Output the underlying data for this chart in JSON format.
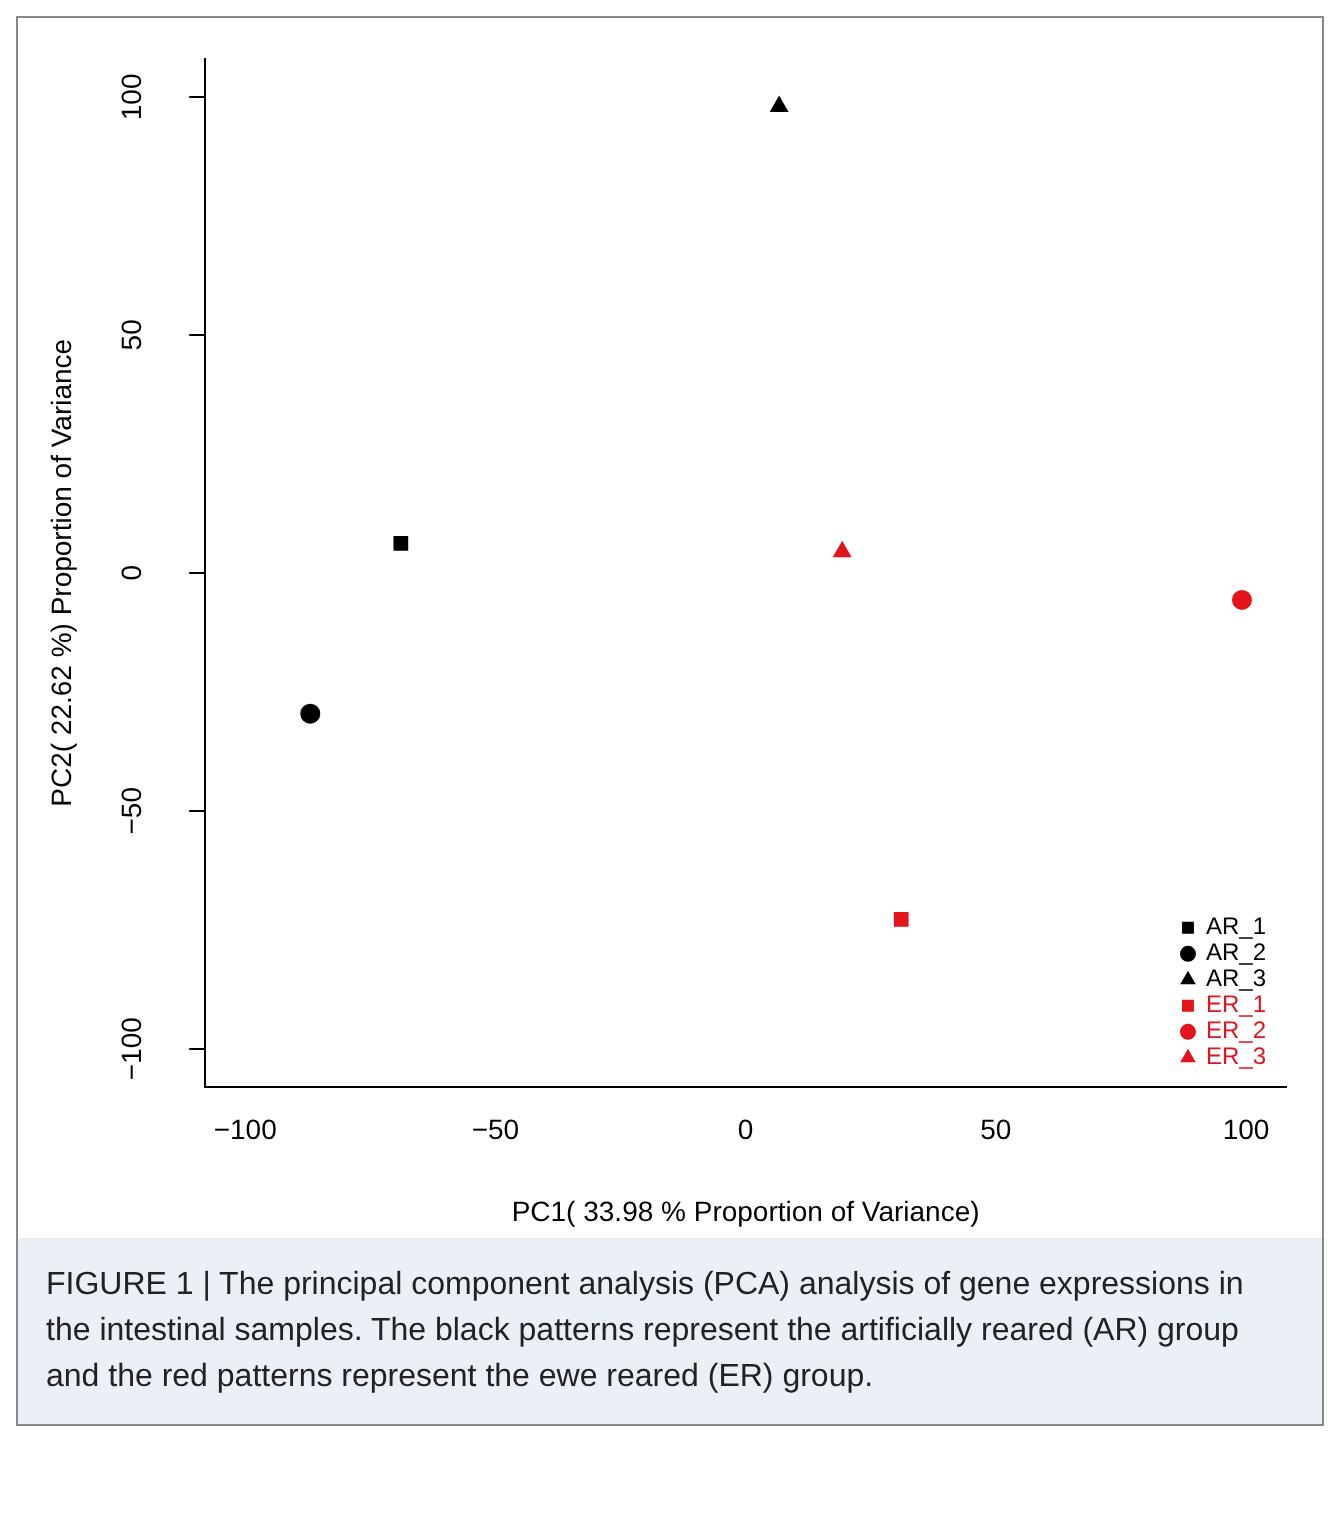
{
  "chart_data": {
    "type": "scatter",
    "xlabel": "PC1( 33.98 % Proportion of Variance)",
    "ylabel": "PC2( 22.62 %) Proportion of Variance",
    "xlim": [
      -108,
      108
    ],
    "ylim": [
      -108,
      108
    ],
    "xticks": [
      -100,
      -50,
      0,
      50,
      100
    ],
    "yticks": [
      -100,
      -50,
      0,
      50,
      100
    ],
    "grid": false,
    "legend": "bottom right",
    "series": [
      {
        "name": "AR_1",
        "color": "#000000",
        "marker": "square",
        "x": [
          -68.9
        ],
        "values": [
          6.2
        ]
      },
      {
        "name": "AR_2",
        "color": "#000000",
        "marker": "circle",
        "x": [
          -87
        ],
        "values": [
          -29.6
        ]
      },
      {
        "name": "AR_3",
        "color": "#000000",
        "marker": "triangle",
        "x": [
          6.7
        ],
        "values": [
          98
        ]
      },
      {
        "name": "ER_1",
        "color": "#e3141b",
        "marker": "square",
        "x": [
          31.1
        ],
        "values": [
          -72.8
        ]
      },
      {
        "name": "ER_2",
        "color": "#e3141b",
        "marker": "circle",
        "x": [
          99.2
        ],
        "values": [
          -5.7
        ]
      },
      {
        "name": "ER_3",
        "color": "#e3141b",
        "marker": "triangle",
        "x": [
          19.3
        ],
        "values": [
          4.4
        ]
      }
    ],
    "annotations": [
      "FIGURE 1 | The principal component analysis (PCA) analysis of gene expressions in the intestinal samples. The black patterns represent the artificially reared (AR) group and the red patterns represent the ewe reared (ER) group."
    ]
  }
}
